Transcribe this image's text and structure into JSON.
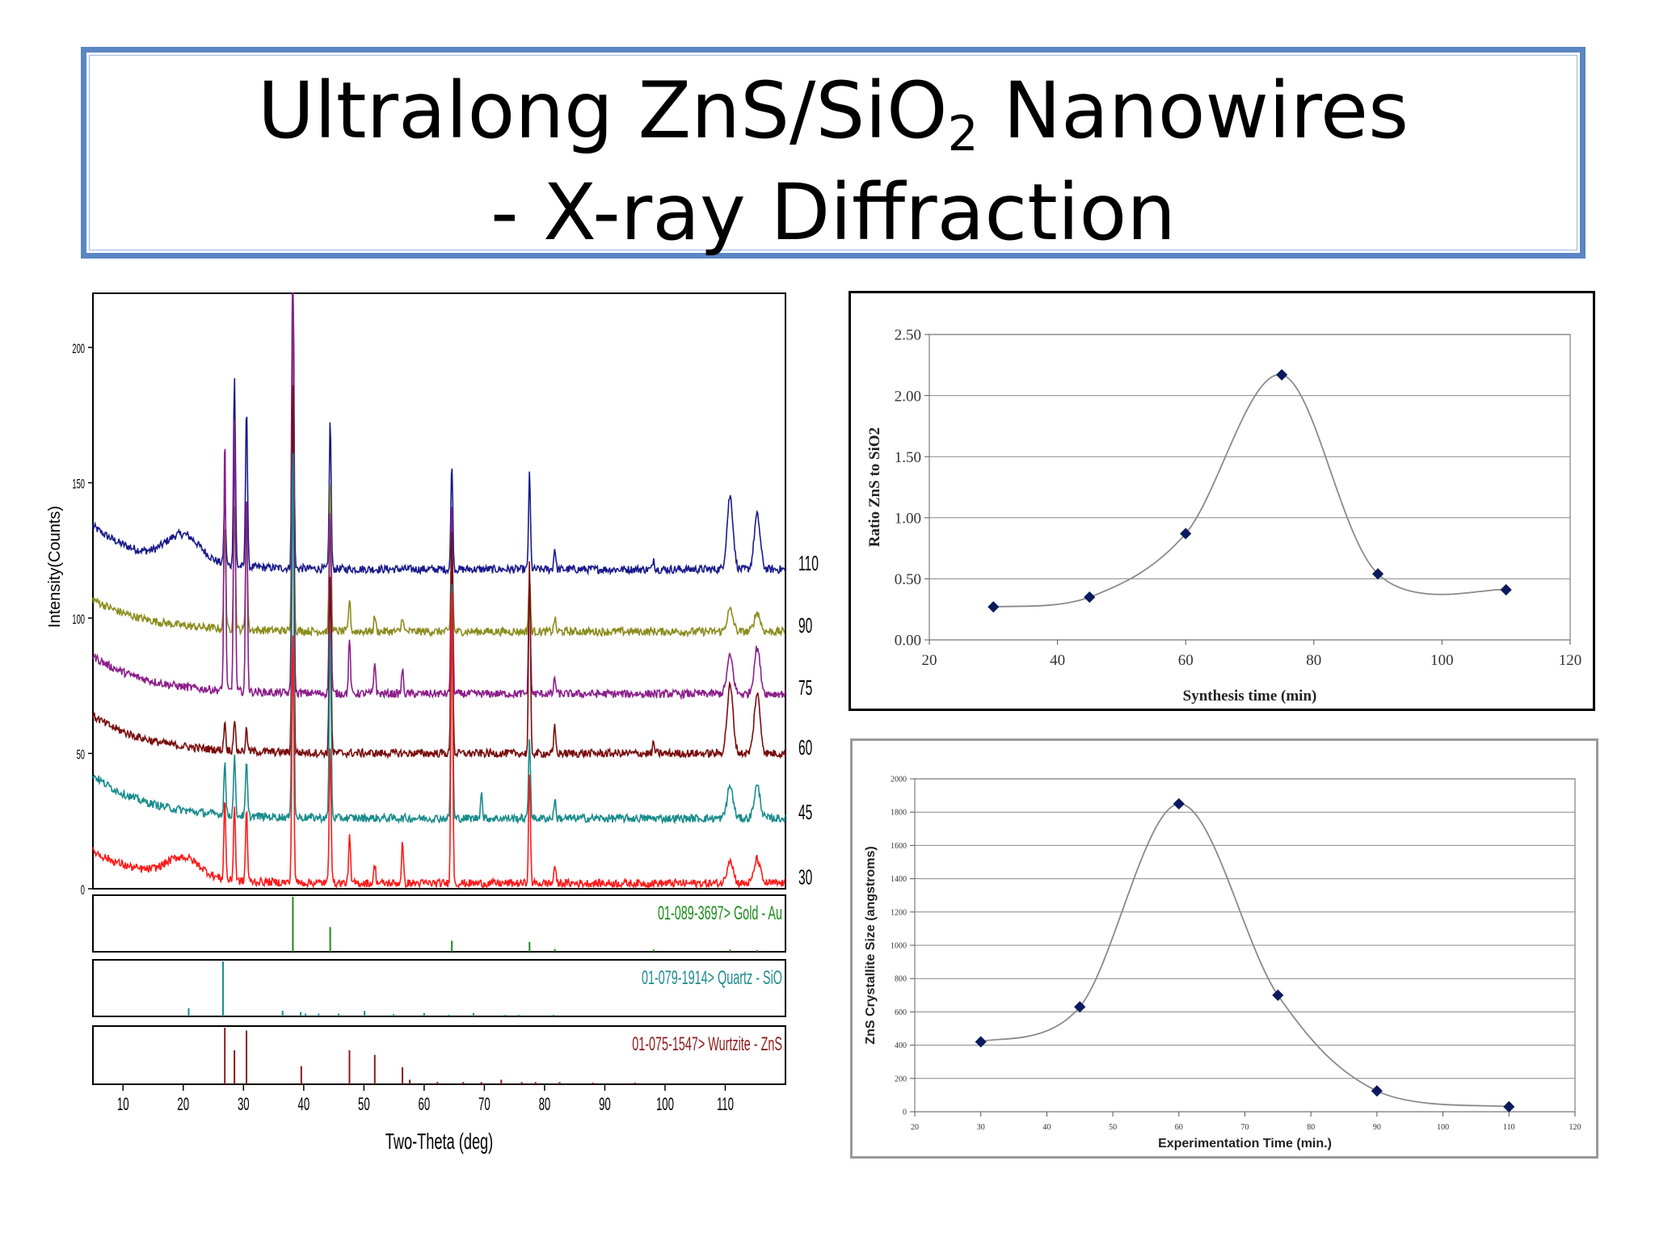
{
  "title": {
    "line1_main": "Ultralong ZnS/SiO",
    "line1_sub": "2",
    "line1_end": " Nanowires",
    "line2": "- X-ray Diffraction"
  },
  "chart_data": [
    {
      "type": "line",
      "title": "",
      "xlabel": "Two-Theta (deg)",
      "ylabel": "Intensity(Counts)",
      "xlim": [
        5,
        120
      ],
      "ylim": [
        0,
        220
      ],
      "xticks": [
        10,
        20,
        30,
        40,
        50,
        60,
        70,
        80,
        90,
        100,
        110
      ],
      "yticks": [
        0,
        50,
        100,
        150,
        200
      ],
      "peaks_2theta": [
        26.9,
        28.5,
        30.5,
        38.2,
        44.4,
        47.6,
        51.8,
        56.4,
        64.6,
        77.5,
        81.7,
        98.1,
        110.8,
        115.3
      ],
      "series": [
        {
          "name": "110",
          "offset": 118,
          "color": "#1a1a8c"
        },
        {
          "name": "90",
          "offset": 95,
          "color": "#8c8c1f"
        },
        {
          "name": "75",
          "offset": 72,
          "color": "#8c1f8c"
        },
        {
          "name": "60",
          "offset": 50,
          "color": "#7a0d0d"
        },
        {
          "name": "45",
          "offset": 26,
          "color": "#1a8c8c"
        },
        {
          "name": "30",
          "offset": 2,
          "color": "#ff1a1a"
        }
      ],
      "references": [
        {
          "label": "01-089-3697> Gold - Au",
          "color": "#1b8c1b",
          "lines": [
            [
              38.2,
              1.0
            ],
            [
              44.4,
              0.45
            ],
            [
              64.6,
              0.2
            ],
            [
              77.5,
              0.18
            ],
            [
              81.7,
              0.05
            ],
            [
              98.1,
              0.04
            ],
            [
              110.8,
              0.04
            ],
            [
              115.3,
              0.03
            ]
          ]
        },
        {
          "label": "01-079-1914> Quartz - SiO",
          "color": "#1b8c8c",
          "lines": [
            [
              20.9,
              0.15
            ],
            [
              26.6,
              1.0
            ],
            [
              36.5,
              0.1
            ],
            [
              39.5,
              0.08
            ],
            [
              40.3,
              0.05
            ],
            [
              42.5,
              0.05
            ],
            [
              45.8,
              0.05
            ],
            [
              50.1,
              0.1
            ],
            [
              54.9,
              0.04
            ],
            [
              60.0,
              0.06
            ],
            [
              64.1,
              0.03
            ],
            [
              68.2,
              0.06
            ],
            [
              73.5,
              0.03
            ],
            [
              75.7,
              0.03
            ],
            [
              81.5,
              0.03
            ]
          ]
        },
        {
          "label": "01-075-1547> Wurtzite - ZnS",
          "color": "#8c1b1b",
          "lines": [
            [
              26.9,
              1.0
            ],
            [
              28.5,
              0.6
            ],
            [
              30.5,
              0.95
            ],
            [
              39.6,
              0.32
            ],
            [
              47.6,
              0.6
            ],
            [
              51.8,
              0.52
            ],
            [
              56.4,
              0.3
            ],
            [
              57.6,
              0.08
            ],
            [
              62.2,
              0.04
            ],
            [
              66.5,
              0.04
            ],
            [
              69.5,
              0.04
            ],
            [
              72.8,
              0.08
            ],
            [
              76.2,
              0.04
            ],
            [
              78.5,
              0.04
            ],
            [
              82.5,
              0.04
            ],
            [
              88.0,
              0.03
            ],
            [
              95.0,
              0.03
            ]
          ]
        }
      ]
    },
    {
      "type": "line",
      "title": "",
      "xlabel": "Synthesis time (min)",
      "ylabel": "Ratio ZnS to SiO2",
      "xlim": [
        20,
        120
      ],
      "ylim": [
        0,
        2.5
      ],
      "xticks": [
        20,
        40,
        60,
        80,
        100,
        120
      ],
      "yticks": [
        "0.00",
        "0.50",
        "1.00",
        "1.50",
        "2.00",
        "2.50"
      ],
      "x": [
        30,
        45,
        60,
        75,
        90,
        110
      ],
      "y": [
        0.27,
        0.35,
        0.87,
        2.17,
        0.54,
        0.41
      ]
    },
    {
      "type": "line",
      "title": "",
      "xlabel": "Experimentation Time (min.)",
      "ylabel": "ZnS Crystallite Size (angstroms)",
      "xlim": [
        20,
        120
      ],
      "ylim": [
        0,
        2000
      ],
      "xticks": [
        20,
        30,
        40,
        50,
        60,
        70,
        80,
        90,
        100,
        110,
        120
      ],
      "yticks": [
        0,
        200,
        400,
        600,
        800,
        1000,
        1200,
        1400,
        1600,
        1800,
        2000
      ],
      "x": [
        30,
        45,
        60,
        75,
        90,
        110
      ],
      "y": [
        420,
        630,
        1850,
        700,
        125,
        30
      ]
    }
  ]
}
